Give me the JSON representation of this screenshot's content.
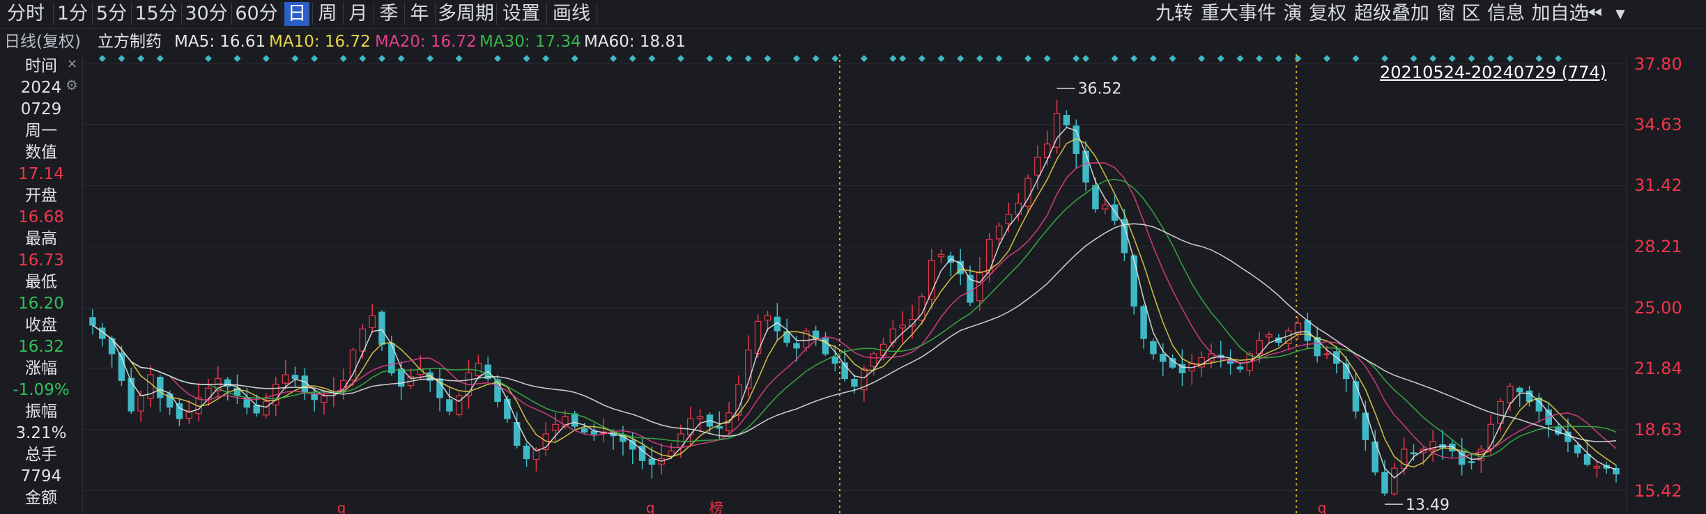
{
  "toolbar": {
    "periods": [
      {
        "label": "分时",
        "active": false
      },
      {
        "label": "1分",
        "active": false
      },
      {
        "label": "5分",
        "active": false
      },
      {
        "label": "15分",
        "active": false
      },
      {
        "label": "30分",
        "active": false
      },
      {
        "label": "60分",
        "active": false
      },
      {
        "label": "日",
        "active": true
      },
      {
        "label": "周",
        "active": false
      },
      {
        "label": "月",
        "active": false
      },
      {
        "label": "季",
        "active": false
      },
      {
        "label": "年",
        "active": false
      },
      {
        "label": "多周期",
        "active": false
      },
      {
        "label": "设置",
        "active": false
      },
      {
        "label": "画线",
        "active": false
      }
    ],
    "right_tools": [
      "九转",
      "重大事件",
      "演",
      "复权",
      "超级叠加",
      "窗",
      "区",
      "信息",
      "加自选"
    ]
  },
  "legend": {
    "prefix": "日线(复权)",
    "stock": "立方制药",
    "ma5": "MA5: 16.61",
    "ma10": "MA10: 16.72",
    "ma20": "MA20: 16.72",
    "ma30": "MA30: 17.34",
    "ma60": "MA60: 18.81",
    "colors": {
      "ma5": "#e6e6e6",
      "ma10": "#e8d44d",
      "ma20": "#e0408a",
      "ma30": "#39b54a",
      "ma60": "#e6e6e6"
    }
  },
  "info": {
    "time_label": "时间",
    "year": "2024",
    "date": "0729",
    "weekday": "周一",
    "value_label": "数值",
    "value": "17.14",
    "open_label": "开盘",
    "open": "16.68",
    "high_label": "最高",
    "high": "16.73",
    "low_label": "最低",
    "low": "16.20",
    "close_label": "收盘",
    "close": "16.32",
    "change_label": "涨幅",
    "change": "-1.09%",
    "amplitude_label": "振幅",
    "amplitude": "3.21%",
    "volume_label": "总手",
    "volume": "7794",
    "amount_label": "金额"
  },
  "range_label": "20210524-20240729 (774)",
  "chart_data": {
    "type": "candlestick",
    "y_ticks": [
      "37.80",
      "34.63",
      "31.42",
      "28.21",
      "25.00",
      "21.84",
      "18.63",
      "15.42"
    ],
    "ylim": [
      14.2,
      38.3
    ],
    "annotations": {
      "max": "36.52",
      "min": "13.49",
      "bottom_marks": [
        "q",
        "q",
        "榜",
        "q"
      ]
    },
    "closes": [
      24.1,
      23.4,
      22.6,
      21.2,
      19.6,
      20.4,
      21.5,
      20.3,
      19.8,
      19.2,
      19.6,
      20.3,
      20.8,
      21.3,
      20.9,
      20.4,
      19.8,
      19.5,
      20.1,
      21.0,
      21.5,
      21.3,
      20.6,
      20.2,
      20.4,
      20.6,
      21.2,
      22.8,
      23.9,
      24.6,
      23.1,
      21.6,
      20.9,
      21.4,
      21.8,
      21.2,
      20.3,
      19.6,
      20.4,
      21.6,
      22.1,
      21.3,
      20.1,
      19.2,
      17.8,
      17.1,
      17.6,
      18.4,
      18.9,
      19.3,
      18.8,
      18.5,
      18.4,
      18.5,
      18.3,
      18.0,
      17.6,
      17.0,
      16.8,
      17.1,
      17.5,
      18.4,
      19.2,
      19.3,
      18.8,
      18.7,
      19.5,
      21.0,
      22.8,
      24.3,
      24.6,
      23.8,
      23.2,
      22.9,
      23.8,
      23.4,
      22.6,
      22.1,
      21.3,
      20.9,
      21.8,
      22.6,
      23.1,
      23.9,
      24.1,
      24.4,
      25.6,
      27.5,
      27.8,
      27.4,
      26.8,
      25.3,
      26.9,
      28.6,
      29.3,
      29.9,
      30.5,
      31.8,
      32.9,
      33.6,
      35.2,
      34.6,
      33.1,
      31.6,
      30.2,
      30.4,
      29.6,
      27.9,
      25.1,
      23.4,
      22.6,
      22.2,
      21.9,
      21.6,
      22.1,
      22.4,
      22.6,
      22.4,
      22.1,
      21.8,
      22.6,
      23.3,
      23.6,
      23.2,
      23.8,
      24.2,
      23.3,
      22.5,
      22.6,
      22.1,
      21.3,
      19.6,
      18.1,
      16.4,
      15.3,
      16.6,
      17.6,
      17.4,
      17.6,
      18.0,
      17.7,
      17.5,
      16.8,
      16.9,
      17.6,
      18.9,
      20.1,
      20.9,
      20.6,
      20.1,
      19.6,
      18.9,
      18.4,
      18.0,
      17.4,
      16.8,
      16.7,
      16.6,
      16.3
    ],
    "pink_markers": [
      [
        1,
        2
      ],
      [
        3,
        2
      ],
      [
        5,
        1
      ],
      [
        7,
        2
      ],
      [
        12,
        1
      ],
      [
        15,
        1
      ],
      [
        18,
        1
      ],
      [
        21,
        2
      ],
      [
        23,
        1
      ],
      [
        26,
        1
      ],
      [
        28,
        3
      ],
      [
        30,
        1
      ],
      [
        32,
        2
      ],
      [
        35,
        3
      ],
      [
        38,
        2
      ],
      [
        42,
        1
      ],
      [
        45,
        2
      ],
      [
        47,
        1
      ],
      [
        50,
        1
      ],
      [
        54,
        3
      ],
      [
        56,
        1
      ],
      [
        58,
        2
      ],
      [
        61,
        1
      ],
      [
        64,
        1
      ],
      [
        66,
        3
      ],
      [
        68,
        1
      ],
      [
        70,
        4
      ],
      [
        73,
        1
      ],
      [
        75,
        2
      ],
      [
        77,
        1
      ],
      [
        80,
        3
      ],
      [
        83,
        2
      ],
      [
        84,
        1
      ],
      [
        86,
        3
      ],
      [
        88,
        1
      ],
      [
        90,
        2
      ],
      [
        92,
        1
      ],
      [
        94,
        3
      ],
      [
        97,
        1
      ],
      [
        99,
        1
      ],
      [
        102,
        1
      ],
      [
        103,
        3
      ],
      [
        106,
        2
      ],
      [
        108,
        2
      ],
      [
        110,
        3
      ],
      [
        112,
        1
      ],
      [
        115,
        2
      ],
      [
        117,
        3
      ],
      [
        119,
        2
      ],
      [
        121,
        1
      ],
      [
        123,
        2
      ],
      [
        125,
        4
      ],
      [
        128,
        1
      ],
      [
        131,
        1
      ],
      [
        134,
        1
      ],
      [
        137,
        2
      ],
      [
        139,
        1
      ],
      [
        141,
        3
      ],
      [
        143,
        2
      ],
      [
        145,
        1
      ],
      [
        147,
        2
      ],
      [
        150,
        3
      ],
      [
        152,
        1
      ]
    ]
  }
}
